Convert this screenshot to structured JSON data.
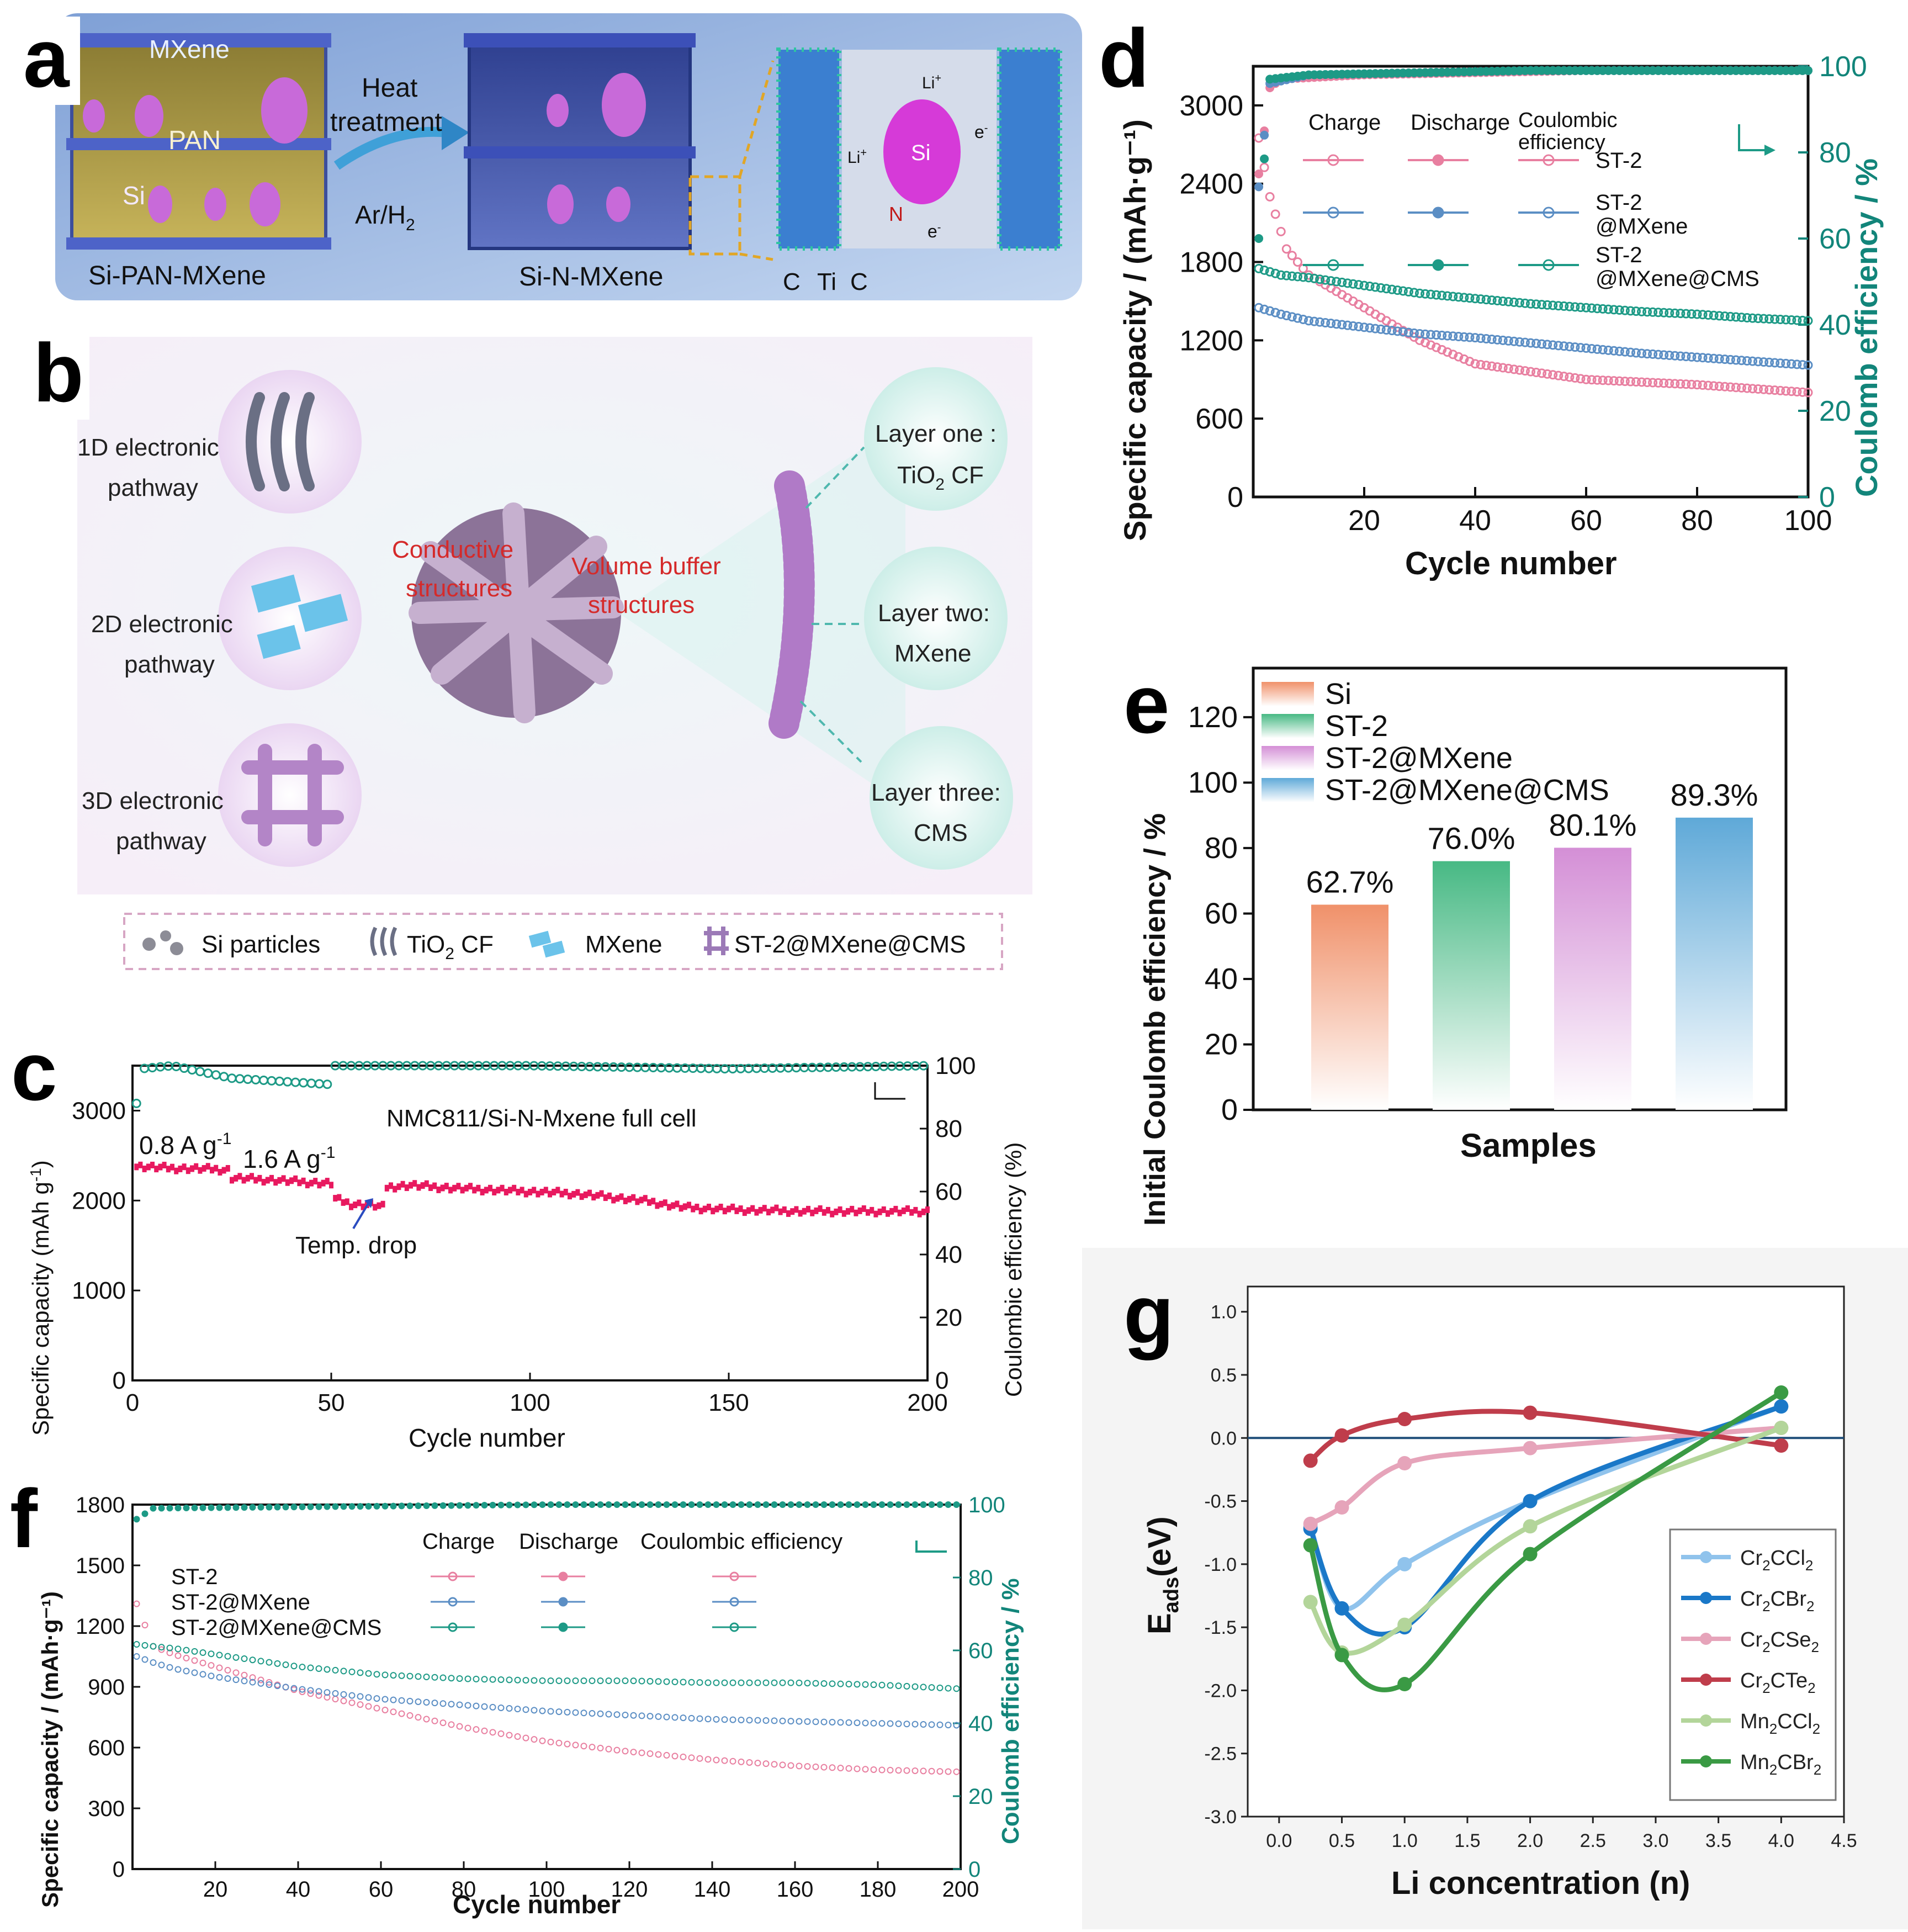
{
  "panel_labels": {
    "a": "a",
    "b": "b",
    "c": "c",
    "d": "d",
    "e": "e",
    "f": "f",
    "g": "g"
  },
  "colors": {
    "pink": "#e87fa0",
    "blue": "#5b8ec4",
    "teal": "#1d9a86",
    "magenta": "#e8195f",
    "dteal": "#12857a"
  },
  "panel_a": {
    "mxene": "MXene",
    "pan": "PAN",
    "si": "Si",
    "heat": "Heat",
    "treatment": "treatment",
    "gas": "Ar/H",
    "gas_sub": "2",
    "left_caption": "Si-PAN-MXene",
    "right_caption": "Si-N-MXene",
    "li_top": "Li",
    "li_top_sup": "+",
    "li_left": "Li",
    "li_left_sup": "+",
    "e_right": "e",
    "e_right_sup": "-",
    "e_bottom": "e",
    "e_bottom_sup": "-",
    "n": "N",
    "si_zoom": "Si",
    "c1": "C",
    "ti": "Ti",
    "c2": "C"
  },
  "panel_b": {
    "p1a": "1D electronic",
    "p1b": "pathway",
    "p2a": "2D electronic",
    "p2b": "pathway",
    "p3a": "3D electronic",
    "p3b": "pathway",
    "cond1": "Conductive",
    "cond2": "structures",
    "vol1": "Volume buffer",
    "vol2": "structures",
    "l1a": "Layer one :",
    "l1b_pre": "TiO",
    "l1b_sub": "2",
    "l1b_post": " CF",
    "l2a": "Layer two:",
    "l2b": "MXene",
    "l3a": "Layer three:",
    "l3b": "CMS",
    "leg_si": "Si particles",
    "leg_tio_pre": "TiO",
    "leg_tio_sub": "2",
    "leg_tio_post": " CF",
    "leg_mx": "MXene",
    "leg_st": "ST-2@MXene@CMS"
  },
  "chart_data": [
    {
      "id": "c",
      "type": "scatter",
      "title": "NMC811/Si-N-Mxene full cell",
      "xlabel": "Cycle number",
      "ylabel_pre": "Specific capacity (mAh g",
      "ylabel_sup": "-1",
      "ylabel_post": ")",
      "y2label": "Coulombic efficiency (%)",
      "xlim": [
        0,
        200
      ],
      "ylim": [
        0,
        3500
      ],
      "y2lim": [
        0,
        100
      ],
      "xticks": [
        "0",
        "50",
        "100",
        "150",
        "200"
      ],
      "yticks": [
        "0",
        "1000",
        "2000",
        "3000"
      ],
      "y2ticks": [
        "0",
        "20",
        "40",
        "60",
        "80",
        "100"
      ],
      "annot1_pre": "0.8 A g",
      "annot1_sup": "-1",
      "annot2_pre": "1.6 A g",
      "annot2_sup": "-1",
      "annot3": "Temp. drop",
      "capacity": [
        [
          1,
          2380
        ],
        [
          10,
          2360
        ],
        [
          20,
          2350
        ],
        [
          24,
          2340
        ],
        [
          25,
          2250
        ],
        [
          35,
          2230
        ],
        [
          45,
          2200
        ],
        [
          50,
          2190
        ],
        [
          51,
          2020
        ],
        [
          55,
          1960
        ],
        [
          60,
          1950
        ],
        [
          63,
          1930
        ],
        [
          64,
          2150
        ],
        [
          70,
          2170
        ],
        [
          80,
          2140
        ],
        [
          90,
          2120
        ],
        [
          100,
          2100
        ],
        [
          110,
          2080
        ],
        [
          120,
          2040
        ],
        [
          130,
          1990
        ],
        [
          135,
          1950
        ],
        [
          140,
          1920
        ],
        [
          150,
          1900
        ],
        [
          160,
          1890
        ],
        [
          170,
          1880
        ],
        [
          180,
          1880
        ],
        [
          190,
          1880
        ],
        [
          200,
          1880
        ]
      ],
      "ce": [
        [
          1,
          88
        ],
        [
          2,
          99
        ],
        [
          10,
          100
        ],
        [
          25,
          96
        ],
        [
          50,
          94
        ],
        [
          51,
          100
        ],
        [
          100,
          100
        ],
        [
          150,
          99
        ],
        [
          200,
          100
        ]
      ]
    },
    {
      "id": "d",
      "type": "scatter",
      "xlabel": "Cycle number",
      "ylabel": "Specific capacity / (mAh·g⁻¹)",
      "y2label": "Coulomb efficiency / %",
      "xlim": [
        0,
        100
      ],
      "ylim": [
        0,
        3300
      ],
      "y2lim": [
        0,
        100
      ],
      "xticks": [
        "20",
        "40",
        "60",
        "80",
        "100"
      ],
      "yticks": [
        "0",
        "600",
        "1200",
        "1800",
        "2400",
        "3000"
      ],
      "y2ticks": [
        "0",
        "20",
        "40",
        "60",
        "80",
        "100"
      ],
      "legend_charge": "Charge",
      "legend_discharge": "Discharge",
      "legend_ce1": "Coulombic",
      "legend_ce2": "efficiency",
      "series": [
        {
          "name": "ST-2",
          "name2": "",
          "color": "#e87fa0",
          "cap": [
            [
              1,
              2750
            ],
            [
              3,
              2300
            ],
            [
              6,
              1900
            ],
            [
              10,
              1700
            ],
            [
              20,
              1450
            ],
            [
              30,
              1200
            ],
            [
              40,
              1020
            ],
            [
              50,
              960
            ],
            [
              60,
              900
            ],
            [
              70,
              880
            ],
            [
              80,
              860
            ],
            [
              90,
              830
            ],
            [
              100,
              800
            ]
          ],
          "ce": [
            [
              1,
              75
            ],
            [
              3,
              95
            ],
            [
              5,
              97
            ],
            [
              20,
              98
            ],
            [
              60,
              99
            ],
            [
              100,
              99
            ]
          ]
        },
        {
          "name": "ST-2",
          "name2": "@MXene",
          "color": "#5b8ec4",
          "cap": [
            [
              1,
              1450
            ],
            [
              5,
              1400
            ],
            [
              10,
              1350
            ],
            [
              20,
              1300
            ],
            [
              30,
              1250
            ],
            [
              40,
              1220
            ],
            [
              50,
              1180
            ],
            [
              60,
              1140
            ],
            [
              70,
              1100
            ],
            [
              80,
              1070
            ],
            [
              90,
              1040
            ],
            [
              100,
              1010
            ]
          ],
          "ce": [
            [
              1,
              72
            ],
            [
              3,
              96
            ],
            [
              10,
              98
            ],
            [
              50,
              99
            ],
            [
              100,
              99
            ]
          ]
        },
        {
          "name": "ST-2",
          "name2": "@MXene@CMS",
          "color": "#1d9a86",
          "cap": [
            [
              1,
              1750
            ],
            [
              5,
              1700
            ],
            [
              10,
              1680
            ],
            [
              20,
              1620
            ],
            [
              30,
              1560
            ],
            [
              40,
              1520
            ],
            [
              50,
              1480
            ],
            [
              60,
              1450
            ],
            [
              70,
              1420
            ],
            [
              80,
              1400
            ],
            [
              90,
              1370
            ],
            [
              100,
              1350
            ]
          ],
          "ce": [
            [
              1,
              60
            ],
            [
              3,
              97
            ],
            [
              10,
              98
            ],
            [
              50,
              99
            ],
            [
              100,
              99
            ]
          ]
        }
      ]
    },
    {
      "id": "e",
      "type": "bar",
      "xlabel": "Samples",
      "ylabel": "Initial Coulomb efficiency / %",
      "ylim": [
        0,
        135
      ],
      "yticks": [
        "0",
        "20",
        "40",
        "60",
        "80",
        "100",
        "120"
      ],
      "categories": [
        "Si",
        "ST-2",
        "ST-2@MXene",
        "ST-2@MXene@CMS"
      ],
      "values": [
        62.7,
        76.0,
        80.1,
        89.3
      ],
      "labels": [
        "62.7%",
        "76.0%",
        "80.1%",
        "89.3%"
      ],
      "colors": [
        "#f0916a",
        "#47b984",
        "#d48fd6",
        "#5fa9d8"
      ]
    },
    {
      "id": "f",
      "type": "scatter",
      "xlabel": "Cycle number",
      "ylabel": "Specific capacity / (mAh·g⁻¹)",
      "y2label": "Coulomb efficiency / %",
      "xlim": [
        0,
        200
      ],
      "ylim": [
        0,
        1800
      ],
      "y2lim": [
        0,
        100
      ],
      "xticks": [
        "20",
        "40",
        "60",
        "80",
        "100",
        "120",
        "140",
        "160",
        "180",
        "200"
      ],
      "yticks": [
        "0",
        "300",
        "600",
        "900",
        "1200",
        "1500",
        "1800"
      ],
      "y2ticks": [
        "0",
        "20",
        "40",
        "60",
        "80",
        "100"
      ],
      "legend_charge": "Charge",
      "legend_discharge": "Discharge",
      "legend_ce": "Coulombic efficiency",
      "series": [
        {
          "name": "ST-2",
          "color": "#e87fa0",
          "cap": [
            [
              1,
              1310
            ],
            [
              5,
              1100
            ],
            [
              10,
              1060
            ],
            [
              20,
              1000
            ],
            [
              40,
              880
            ],
            [
              60,
              790
            ],
            [
              80,
              700
            ],
            [
              100,
              630
            ],
            [
              120,
              580
            ],
            [
              140,
              540
            ],
            [
              160,
              510
            ],
            [
              180,
              490
            ],
            [
              200,
              480
            ]
          ]
        },
        {
          "name": "ST-2@MXene",
          "color": "#5b8ec4",
          "cap": [
            [
              1,
              1050
            ],
            [
              5,
              1020
            ],
            [
              10,
              990
            ],
            [
              20,
              950
            ],
            [
              40,
              890
            ],
            [
              60,
              840
            ],
            [
              80,
              810
            ],
            [
              100,
              780
            ],
            [
              120,
              760
            ],
            [
              140,
              740
            ],
            [
              160,
              730
            ],
            [
              180,
              720
            ],
            [
              200,
              710
            ]
          ]
        },
        {
          "name": "ST-2@MXene@CMS",
          "color": "#1d9a86",
          "cap": [
            [
              1,
              1110
            ],
            [
              5,
              1100
            ],
            [
              10,
              1090
            ],
            [
              20,
              1060
            ],
            [
              40,
              1000
            ],
            [
              60,
              960
            ],
            [
              80,
              940
            ],
            [
              100,
              930
            ],
            [
              120,
              930
            ],
            [
              140,
              920
            ],
            [
              160,
              920
            ],
            [
              180,
              910
            ],
            [
              200,
              890
            ]
          ]
        }
      ],
      "ce": [
        [
          1,
          96
        ],
        [
          5,
          99
        ],
        [
          100,
          100
        ],
        [
          200,
          100
        ]
      ]
    },
    {
      "id": "g",
      "type": "line",
      "xlabel": "Li concentration (n)",
      "ylabel_pre": "E",
      "ylabel_sub": "ads",
      "ylabel_post": "(eV)",
      "xlim": [
        -0.25,
        4.5
      ],
      "ylim": [
        -3.0,
        1.2
      ],
      "xticks": [
        "0.0",
        "0.5",
        "1.0",
        "1.5",
        "2.0",
        "2.5",
        "3.0",
        "3.5",
        "4.0",
        "4.5"
      ],
      "yticks": [
        "-3.0",
        "-2.5",
        "-2.0",
        "-1.5",
        "-1.0",
        "-0.5",
        "0.0",
        "0.5",
        "1.0"
      ],
      "series": [
        {
          "pre": "Cr",
          "s1": "2",
          "mid": "CCl",
          "s2": "2",
          "color": "#90c3ec",
          "x": [
            0.25,
            0.5,
            1.0,
            2.0,
            4.0
          ],
          "y": [
            -0.7,
            -1.35,
            -1.0,
            -0.5,
            0.25
          ]
        },
        {
          "pre": "Cr",
          "s1": "2",
          "mid": "CBr",
          "s2": "2",
          "color": "#1a78c8",
          "x": [
            0.25,
            0.5,
            1.0,
            2.0,
            4.0
          ],
          "y": [
            -0.72,
            -1.35,
            -1.5,
            -0.5,
            0.25
          ]
        },
        {
          "pre": "Cr",
          "s1": "2",
          "mid": "CSe",
          "s2": "2",
          "color": "#e6a4ba",
          "x": [
            0.25,
            0.5,
            1.0,
            2.0,
            4.0
          ],
          "y": [
            -0.68,
            -0.55,
            -0.2,
            -0.08,
            0.08
          ]
        },
        {
          "pre": "Cr",
          "s1": "2",
          "mid": "CTe",
          "s2": "2",
          "color": "#bf3d4b",
          "x": [
            0.25,
            0.5,
            1.0,
            2.0,
            4.0
          ],
          "y": [
            -0.18,
            0.02,
            0.15,
            0.2,
            -0.06
          ]
        },
        {
          "pre": "Mn",
          "s1": "2",
          "mid": "CCl",
          "s2": "2",
          "color": "#b3d59a",
          "x": [
            0.25,
            0.5,
            1.0,
            2.0,
            4.0
          ],
          "y": [
            -1.3,
            -1.7,
            -1.48,
            -0.7,
            0.08
          ]
        },
        {
          "pre": "Mn",
          "s1": "2",
          "mid": "CBr",
          "s2": "2",
          "color": "#3a9a44",
          "x": [
            0.25,
            0.5,
            1.0,
            2.0,
            4.0
          ],
          "y": [
            -0.85,
            -1.72,
            -1.95,
            -0.92,
            0.36
          ]
        }
      ]
    }
  ]
}
